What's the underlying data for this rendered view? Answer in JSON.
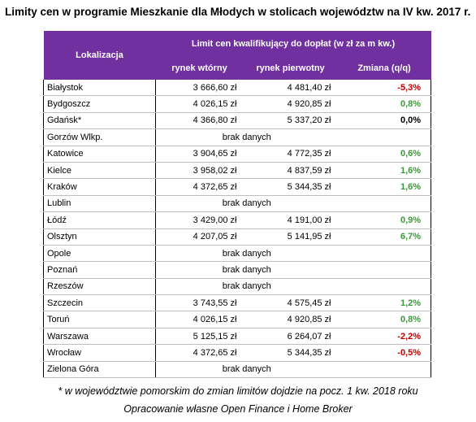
{
  "title": "Limity cen w programie Mieszkanie dla Młodych w stolicach województw na IV kw. 2017 r.",
  "headers": {
    "location": "Lokalizacja",
    "limit": "Limit cen kwalifikujący do dopłat (w zł za m kw.)",
    "secondary": "rynek wtórny",
    "primary": "rynek pierwotny",
    "change": "Zmiana (q/q)"
  },
  "no_data_label": "brak danych",
  "rows": [
    {
      "name": "Białystok",
      "secondary": "3 666,60 zł",
      "primary": "4 481,40 zł",
      "change": "-5,3%",
      "trend": "neg"
    },
    {
      "name": "Bydgoszcz",
      "secondary": "4 026,15 zł",
      "primary": "4 920,85 zł",
      "change": "0,8%",
      "trend": "pos"
    },
    {
      "name": "Gdańsk*",
      "secondary": "4 366,80 zł",
      "primary": "5 337,20 zł",
      "change": "0,0%",
      "trend": "zero"
    },
    {
      "name": "Gorzów Wlkp.",
      "nodata": true
    },
    {
      "name": "Katowice",
      "secondary": "3 904,65 zł",
      "primary": "4 772,35 zł",
      "change": "0,6%",
      "trend": "pos"
    },
    {
      "name": "Kielce",
      "secondary": "3 958,02 zł",
      "primary": "4 837,59 zł",
      "change": "1,6%",
      "trend": "pos"
    },
    {
      "name": "Kraków",
      "secondary": "4 372,65 zł",
      "primary": "5 344,35 zł",
      "change": "1,6%",
      "trend": "pos"
    },
    {
      "name": "Lublin",
      "nodata": true
    },
    {
      "name": "Łódź",
      "secondary": "3 429,00 zł",
      "primary": "4 191,00 zł",
      "change": "0,9%",
      "trend": "pos"
    },
    {
      "name": "Olsztyn",
      "secondary": "4 207,05 zł",
      "primary": "5 141,95 zł",
      "change": "6,7%",
      "trend": "pos"
    },
    {
      "name": "Opole",
      "nodata": true
    },
    {
      "name": "Poznań",
      "nodata": true
    },
    {
      "name": "Rzeszów",
      "nodata": true
    },
    {
      "name": "Szczecin",
      "secondary": "3 743,55 zł",
      "primary": "4 575,45 zł",
      "change": "1,2%",
      "trend": "pos"
    },
    {
      "name": "Toruń",
      "secondary": "4 026,15 zł",
      "primary": "4 920,85 zł",
      "change": "0,8%",
      "trend": "pos"
    },
    {
      "name": "Warszawa",
      "secondary": "5 125,15 zł",
      "primary": "6 264,07 zł",
      "change": "-2,2%",
      "trend": "neg"
    },
    {
      "name": "Wrocław",
      "secondary": "4 372,65 zł",
      "primary": "5 344,35 zł",
      "change": "-0,5%",
      "trend": "neg"
    },
    {
      "name": "Zielona Góra",
      "nodata": true
    }
  ],
  "footnote": "* w województwie pomorskim do zmian limitów dojdzie na pocz. 1 kw. 2018 roku",
  "source": "Opracowanie własne Open Finance i Home Broker",
  "colors": {
    "header_bg": "#7030a0",
    "negative": "#c00000",
    "positive": "#3a9a3a"
  }
}
